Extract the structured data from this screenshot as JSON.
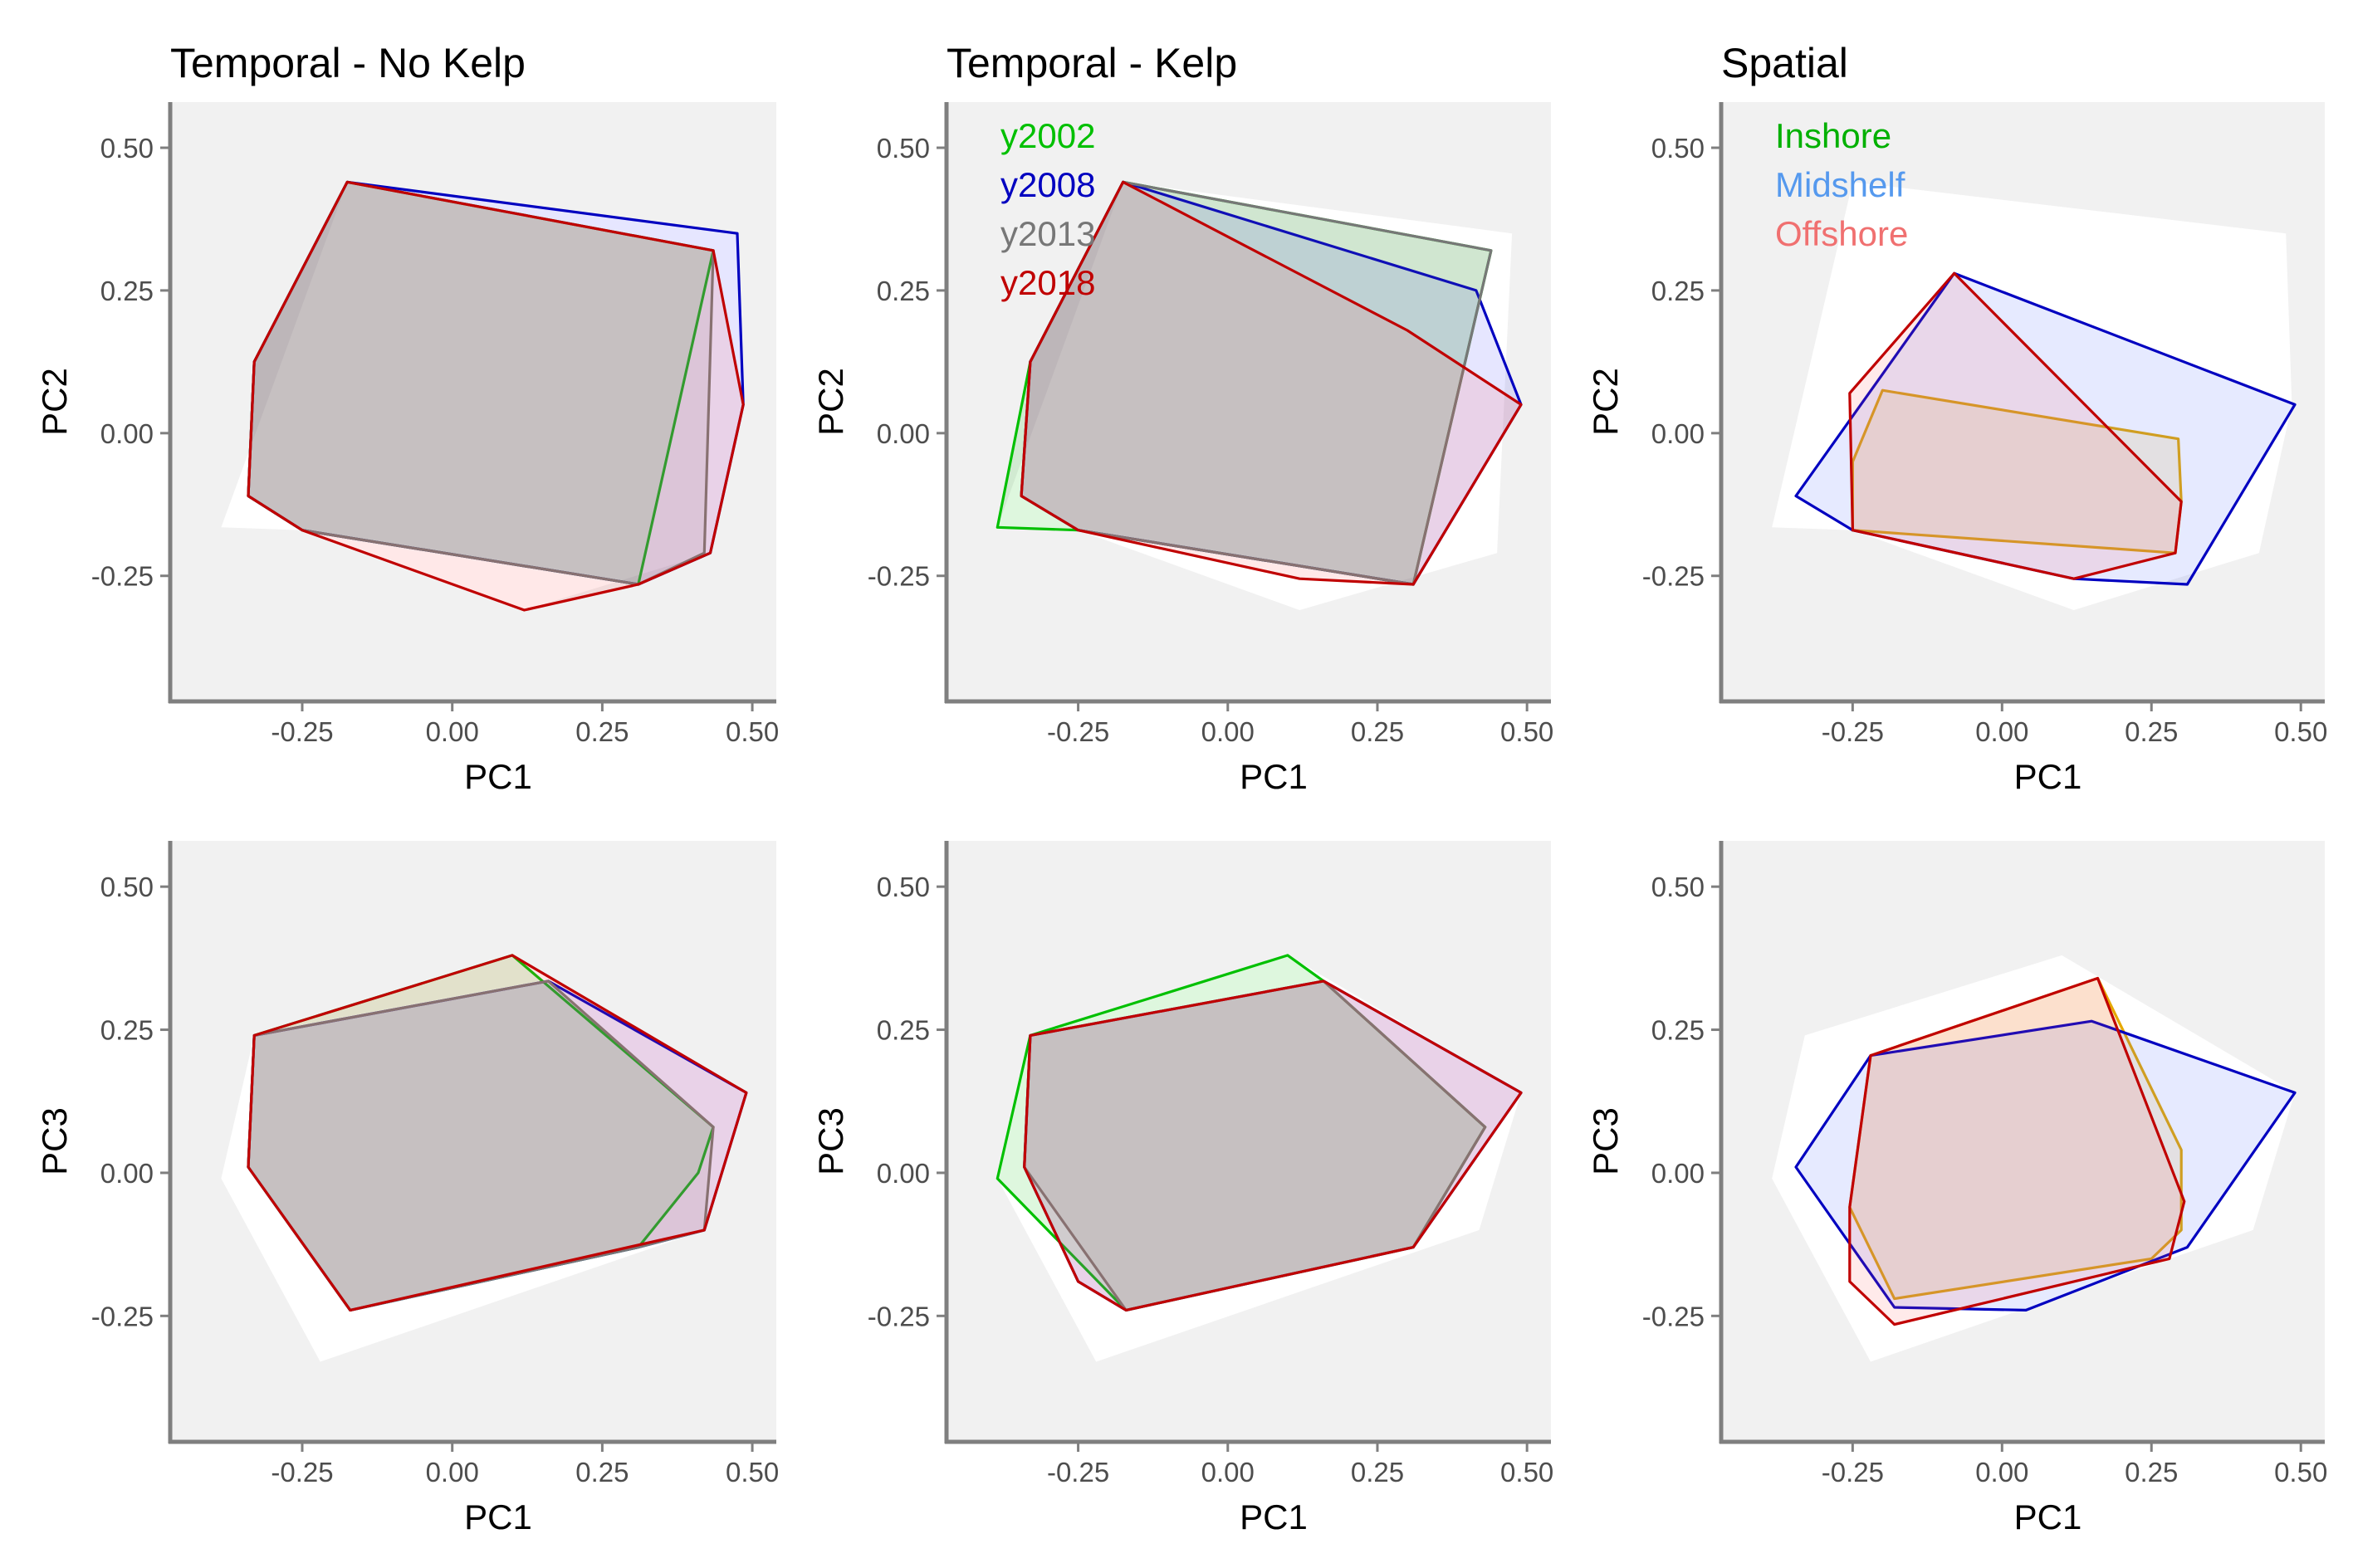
{
  "colors": {
    "panel_bg": "#f1f1f1",
    "hull_bg": "#ffffff",
    "axis": "#7f7f7f",
    "tick_text": "#4d4d4d",
    "title_text": "#000000"
  },
  "chart_data": [
    {
      "type": "scatter",
      "title": "Temporal - No Kelp",
      "xlabel": "PC1",
      "ylabel": "PC2",
      "xlim": [
        -0.47,
        0.54
      ],
      "ylim": [
        -0.47,
        0.58
      ],
      "xticks": [
        -0.25,
        0,
        0.25,
        0.5
      ],
      "xtick_labels": [
        "-0.25",
        "0.00",
        "0.25",
        "0.50"
      ],
      "yticks": [
        -0.25,
        0,
        0.25,
        0.5
      ],
      "ytick_labels": [
        "-0.25",
        "0.00",
        "0.25",
        "0.50"
      ],
      "grid": false,
      "background_hull": [
        [
          -0.385,
          -0.165
        ],
        [
          -0.175,
          0.44
        ],
        [
          0.475,
          0.35
        ],
        [
          0.485,
          0.05
        ],
        [
          0.43,
          -0.21
        ],
        [
          0.12,
          -0.31
        ],
        [
          -0.25,
          -0.17
        ]
      ],
      "series": [
        {
          "color": "#00c000",
          "fill": "#00c000",
          "points": [
            [
              -0.175,
              0.44
            ],
            [
              0.435,
              0.32
            ],
            [
              0.31,
              -0.265
            ],
            [
              -0.25,
              -0.17
            ],
            [
              -0.34,
              -0.11
            ],
            [
              -0.33,
              0.125
            ]
          ]
        },
        {
          "color": "#0000c0",
          "fill": "#4040ff",
          "points": [
            [
              -0.175,
              0.44
            ],
            [
              0.475,
              0.35
            ],
            [
              0.485,
              0.05
            ],
            [
              0.43,
              -0.21
            ],
            [
              0.31,
              -0.265
            ],
            [
              -0.25,
              -0.17
            ],
            [
              -0.34,
              -0.11
            ],
            [
              -0.33,
              0.125
            ]
          ]
        },
        {
          "color": "#777777",
          "fill": "#777777",
          "points": [
            [
              -0.175,
              0.44
            ],
            [
              0.435,
              0.32
            ],
            [
              0.42,
              -0.21
            ],
            [
              0.31,
              -0.265
            ],
            [
              -0.25,
              -0.17
            ],
            [
              -0.34,
              -0.11
            ],
            [
              -0.33,
              0.125
            ]
          ]
        },
        {
          "color": "#c00000",
          "fill": "#ff5050",
          "points": [
            [
              -0.175,
              0.44
            ],
            [
              0.435,
              0.32
            ],
            [
              0.485,
              0.05
            ],
            [
              0.43,
              -0.21
            ],
            [
              0.31,
              -0.265
            ],
            [
              0.12,
              -0.31
            ],
            [
              -0.25,
              -0.17
            ],
            [
              -0.34,
              -0.11
            ],
            [
              -0.33,
              0.125
            ]
          ]
        }
      ]
    },
    {
      "type": "scatter",
      "title": "Temporal - Kelp",
      "xlabel": "PC1",
      "ylabel": "PC2",
      "xlim": [
        -0.47,
        0.54
      ],
      "ylim": [
        -0.47,
        0.58
      ],
      "xticks": [
        -0.25,
        0,
        0.25,
        0.5
      ],
      "xtick_labels": [
        "-0.25",
        "0.00",
        "0.25",
        "0.50"
      ],
      "yticks": [
        -0.25,
        0,
        0.25,
        0.5
      ],
      "ytick_labels": [
        "-0.25",
        "0.00",
        "0.25",
        "0.50"
      ],
      "grid": false,
      "background_hull": [
        [
          -0.385,
          -0.165
        ],
        [
          -0.175,
          0.44
        ],
        [
          0.475,
          0.35
        ],
        [
          0.45,
          -0.21
        ],
        [
          0.12,
          -0.31
        ],
        [
          -0.25,
          -0.17
        ]
      ],
      "series": [
        {
          "name": "y2002",
          "color": "#00c000",
          "fill": "#00c000",
          "points": [
            [
              -0.175,
              0.44
            ],
            [
              0.44,
              0.32
            ],
            [
              0.31,
              -0.265
            ],
            [
              -0.25,
              -0.17
            ],
            [
              -0.385,
              -0.165
            ],
            [
              -0.33,
              0.125
            ]
          ]
        },
        {
          "name": "y2008",
          "color": "#0000c0",
          "fill": "#4040ff",
          "points": [
            [
              -0.175,
              0.44
            ],
            [
              0.415,
              0.25
            ],
            [
              0.49,
              0.05
            ],
            [
              0.31,
              -0.265
            ],
            [
              -0.25,
              -0.17
            ],
            [
              -0.345,
              -0.11
            ],
            [
              -0.33,
              0.125
            ]
          ]
        },
        {
          "name": "y2013",
          "color": "#777777",
          "fill": "#777777",
          "points": [
            [
              -0.175,
              0.44
            ],
            [
              0.44,
              0.32
            ],
            [
              0.31,
              -0.265
            ],
            [
              -0.25,
              -0.17
            ],
            [
              -0.345,
              -0.11
            ],
            [
              -0.33,
              0.125
            ]
          ]
        },
        {
          "name": "y2018",
          "color": "#c00000",
          "fill": "#ff5050",
          "points": [
            [
              -0.175,
              0.44
            ],
            [
              0.3,
              0.18
            ],
            [
              0.49,
              0.05
            ],
            [
              0.31,
              -0.265
            ],
            [
              0.12,
              -0.255
            ],
            [
              -0.25,
              -0.17
            ],
            [
              -0.345,
              -0.11
            ],
            [
              -0.33,
              0.125
            ]
          ]
        }
      ]
    },
    {
      "type": "scatter",
      "title": "Spatial",
      "xlabel": "PC1",
      "ylabel": "PC2",
      "xlim": [
        -0.47,
        0.54
      ],
      "ylim": [
        -0.47,
        0.58
      ],
      "xticks": [
        -0.25,
        0,
        0.25,
        0.5
      ],
      "xtick_labels": [
        "-0.25",
        "0.00",
        "0.25",
        "0.50"
      ],
      "yticks": [
        -0.25,
        0,
        0.25,
        0.5
      ],
      "ytick_labels": [
        "-0.25",
        "0.00",
        "0.25",
        "0.50"
      ],
      "grid": false,
      "background_hull": [
        [
          -0.385,
          -0.165
        ],
        [
          -0.25,
          0.44
        ],
        [
          0.475,
          0.35
        ],
        [
          0.485,
          0.05
        ],
        [
          0.43,
          -0.21
        ],
        [
          0.12,
          -0.31
        ],
        [
          -0.25,
          -0.17
        ]
      ],
      "series": [
        {
          "name": "Inshore",
          "color": "#e6a800",
          "fill": "#e6a800",
          "points": [
            [
              -0.2,
              0.075
            ],
            [
              0.295,
              -0.01
            ],
            [
              0.3,
              -0.12
            ],
            [
              0.29,
              -0.21
            ],
            [
              -0.25,
              -0.17
            ],
            [
              -0.25,
              -0.05
            ]
          ]
        },
        {
          "name": "Midshelf",
          "color": "#0000c0",
          "fill": "#4060ff",
          "points": [
            [
              -0.08,
              0.28
            ],
            [
              0.49,
              0.05
            ],
            [
              0.31,
              -0.265
            ],
            [
              0.12,
              -0.255
            ],
            [
              -0.25,
              -0.17
            ],
            [
              -0.345,
              -0.11
            ]
          ]
        },
        {
          "name": "Offshore",
          "color": "#c00000",
          "fill": "#ff6060",
          "points": [
            [
              -0.08,
              0.28
            ],
            [
              0.3,
              -0.12
            ],
            [
              0.29,
              -0.21
            ],
            [
              0.12,
              -0.255
            ],
            [
              -0.25,
              -0.17
            ],
            [
              -0.255,
              0.07
            ]
          ]
        }
      ],
      "legend_colors": [
        "#00b000",
        "#5599ee",
        "#f07070"
      ]
    },
    {
      "type": "scatter",
      "title": "",
      "xlabel": "PC1",
      "ylabel": "PC3",
      "xlim": [
        -0.47,
        0.54
      ],
      "ylim": [
        -0.47,
        0.58
      ],
      "xticks": [
        -0.25,
        0,
        0.25,
        0.5
      ],
      "xtick_labels": [
        "-0.25",
        "0.00",
        "0.25",
        "0.50"
      ],
      "yticks": [
        -0.25,
        0,
        0.25,
        0.5
      ],
      "ytick_labels": [
        "-0.25",
        "0.00",
        "0.25",
        "0.50"
      ],
      "grid": false,
      "background_hull": [
        [
          -0.385,
          -0.01
        ],
        [
          -0.33,
          0.24
        ],
        [
          0.1,
          0.38
        ],
        [
          0.49,
          0.14
        ],
        [
          0.42,
          -0.1
        ],
        [
          -0.22,
          -0.33
        ]
      ],
      "series": [
        {
          "color": "#00c000",
          "fill": "#00c000",
          "points": [
            [
              -0.33,
              0.24
            ],
            [
              0.1,
              0.38
            ],
            [
              0.435,
              0.08
            ],
            [
              0.41,
              0.0
            ],
            [
              0.31,
              -0.13
            ],
            [
              -0.17,
              -0.24
            ],
            [
              -0.34,
              0.01
            ]
          ]
        },
        {
          "color": "#0000c0",
          "fill": "#4040ff",
          "points": [
            [
              -0.33,
              0.24
            ],
            [
              0.16,
              0.335
            ],
            [
              0.49,
              0.14
            ],
            [
              0.42,
              -0.1
            ],
            [
              0.31,
              -0.13
            ],
            [
              -0.17,
              -0.24
            ],
            [
              -0.34,
              0.01
            ]
          ]
        },
        {
          "color": "#777777",
          "fill": "#777777",
          "points": [
            [
              -0.33,
              0.24
            ],
            [
              0.16,
              0.335
            ],
            [
              0.435,
              0.08
            ],
            [
              0.42,
              -0.1
            ],
            [
              0.31,
              -0.13
            ],
            [
              -0.17,
              -0.24
            ],
            [
              -0.34,
              0.01
            ]
          ]
        },
        {
          "color": "#c00000",
          "fill": "#ff5050",
          "points": [
            [
              -0.33,
              0.24
            ],
            [
              0.1,
              0.38
            ],
            [
              0.49,
              0.14
            ],
            [
              0.42,
              -0.1
            ],
            [
              -0.17,
              -0.24
            ],
            [
              -0.34,
              0.01
            ]
          ]
        }
      ]
    },
    {
      "type": "scatter",
      "title": "",
      "xlabel": "PC1",
      "ylabel": "PC3",
      "xlim": [
        -0.47,
        0.54
      ],
      "ylim": [
        -0.47,
        0.58
      ],
      "xticks": [
        -0.25,
        0,
        0.25,
        0.5
      ],
      "xtick_labels": [
        "-0.25",
        "0.00",
        "0.25",
        "0.50"
      ],
      "yticks": [
        -0.25,
        0,
        0.25,
        0.5
      ],
      "ytick_labels": [
        "-0.25",
        "0.00",
        "0.25",
        "0.50"
      ],
      "grid": false,
      "background_hull": [
        [
          -0.385,
          -0.01
        ],
        [
          -0.33,
          0.24
        ],
        [
          0.1,
          0.38
        ],
        [
          0.49,
          0.14
        ],
        [
          0.42,
          -0.1
        ],
        [
          -0.22,
          -0.33
        ]
      ],
      "series": [
        {
          "name": "y2002",
          "color": "#00c000",
          "fill": "#00c000",
          "points": [
            [
              -0.33,
              0.24
            ],
            [
              0.1,
              0.38
            ],
            [
              0.16,
              0.335
            ],
            [
              0.43,
              0.08
            ],
            [
              0.31,
              -0.13
            ],
            [
              -0.17,
              -0.24
            ],
            [
              -0.385,
              -0.01
            ]
          ]
        },
        {
          "name": "y2008",
          "color": "#0000c0",
          "fill": "#4040ff",
          "points": [
            [
              -0.33,
              0.24
            ],
            [
              0.16,
              0.335
            ],
            [
              0.49,
              0.14
            ],
            [
              0.31,
              -0.13
            ],
            [
              -0.17,
              -0.24
            ],
            [
              -0.25,
              -0.19
            ],
            [
              -0.34,
              0.01
            ]
          ]
        },
        {
          "name": "y2013",
          "color": "#777777",
          "fill": "#777777",
          "points": [
            [
              -0.33,
              0.24
            ],
            [
              0.16,
              0.335
            ],
            [
              0.43,
              0.08
            ],
            [
              0.31,
              -0.13
            ],
            [
              -0.17,
              -0.24
            ],
            [
              -0.34,
              0.01
            ]
          ]
        },
        {
          "name": "y2018",
          "color": "#c00000",
          "fill": "#ff5050",
          "points": [
            [
              -0.33,
              0.24
            ],
            [
              0.16,
              0.335
            ],
            [
              0.49,
              0.14
            ],
            [
              0.31,
              -0.13
            ],
            [
              -0.17,
              -0.24
            ],
            [
              -0.25,
              -0.19
            ],
            [
              -0.34,
              0.01
            ]
          ]
        }
      ]
    },
    {
      "type": "scatter",
      "title": "",
      "xlabel": "PC1",
      "ylabel": "PC3",
      "xlim": [
        -0.47,
        0.54
      ],
      "ylim": [
        -0.47,
        0.58
      ],
      "xticks": [
        -0.25,
        0,
        0.25,
        0.5
      ],
      "xtick_labels": [
        "-0.25",
        "0.00",
        "0.25",
        "0.50"
      ],
      "yticks": [
        -0.25,
        0,
        0.25,
        0.5
      ],
      "ytick_labels": [
        "-0.25",
        "0.00",
        "0.25",
        "0.50"
      ],
      "grid": false,
      "background_hull": [
        [
          -0.385,
          -0.01
        ],
        [
          -0.33,
          0.24
        ],
        [
          0.1,
          0.38
        ],
        [
          0.49,
          0.14
        ],
        [
          0.42,
          -0.1
        ],
        [
          -0.22,
          -0.33
        ]
      ],
      "series": [
        {
          "name": "Inshore",
          "color": "#e6a800",
          "fill": "#e6a800",
          "points": [
            [
              -0.22,
              0.205
            ],
            [
              0.16,
              0.34
            ],
            [
              0.3,
              0.04
            ],
            [
              0.3,
              -0.1
            ],
            [
              0.25,
              -0.15
            ],
            [
              -0.18,
              -0.22
            ],
            [
              -0.255,
              -0.06
            ]
          ]
        },
        {
          "name": "Midshelf",
          "color": "#0000c0",
          "fill": "#4060ff",
          "points": [
            [
              -0.22,
              0.205
            ],
            [
              0.15,
              0.265
            ],
            [
              0.49,
              0.14
            ],
            [
              0.31,
              -0.13
            ],
            [
              0.04,
              -0.24
            ],
            [
              -0.18,
              -0.235
            ],
            [
              -0.345,
              0.01
            ]
          ]
        },
        {
          "name": "Offshore",
          "color": "#c00000",
          "fill": "#ff6060",
          "points": [
            [
              -0.22,
              0.205
            ],
            [
              0.16,
              0.34
            ],
            [
              0.305,
              -0.05
            ],
            [
              0.28,
              -0.15
            ],
            [
              -0.18,
              -0.265
            ],
            [
              -0.255,
              -0.19
            ],
            [
              -0.255,
              -0.06
            ]
          ]
        }
      ]
    }
  ],
  "legends": {
    "kelp": [
      "y2002",
      "y2008",
      "y2013",
      "y2018"
    ],
    "spatial": [
      "Inshore",
      "Midshelf",
      "Offshore"
    ]
  }
}
